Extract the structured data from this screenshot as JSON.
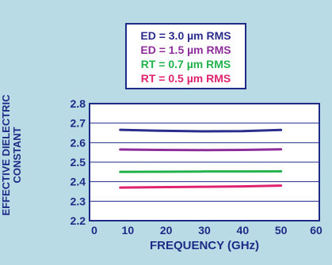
{
  "chart_data": {
    "type": "line",
    "title": "",
    "xlabel": "FREQUENCY (GHz)",
    "ylabel_lines": [
      "EFFECTIVE DIELECTRIC",
      "CONSTANT"
    ],
    "xlim": [
      0,
      60
    ],
    "ylim": [
      2.2,
      2.8
    ],
    "x_ticks": [
      "0",
      "10",
      "20",
      "30",
      "40",
      "50",
      "60"
    ],
    "y_ticks": [
      "2.2",
      "2.3",
      "2.4",
      "2.5",
      "2.6",
      "2.7",
      "2.8"
    ],
    "grid": "horizontal",
    "legend_position": "top-center",
    "series": [
      {
        "name": "ED = 3.0 µm RMS",
        "color": "#2a2d8c",
        "x": [
          8,
          18,
          30,
          40,
          50
        ],
        "y": [
          2.666,
          2.661,
          2.658,
          2.659,
          2.665
        ]
      },
      {
        "name": "ED = 1.5 µm RMS",
        "color": "#8e2e9a",
        "x": [
          8,
          18,
          30,
          40,
          50
        ],
        "y": [
          2.565,
          2.563,
          2.562,
          2.563,
          2.566
        ]
      },
      {
        "name": "RT = 0.7 µm RMS",
        "color": "#22b24c",
        "x": [
          8,
          18,
          30,
          40,
          50
        ],
        "y": [
          2.45,
          2.451,
          2.452,
          2.452,
          2.453
        ]
      },
      {
        "name": "RT = 0.5 µm RMS",
        "color": "#e0236f",
        "x": [
          8,
          18,
          30,
          40,
          50
        ],
        "y": [
          2.37,
          2.372,
          2.374,
          2.376,
          2.38
        ]
      }
    ]
  }
}
